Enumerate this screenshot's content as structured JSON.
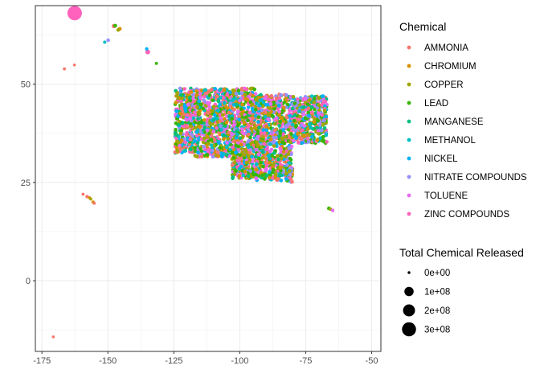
{
  "chart_data": {
    "type": "scatter",
    "title": "",
    "xlabel": "",
    "ylabel": "",
    "xlim": [
      -177.5,
      -46.5
    ],
    "ylim": [
      -18,
      70
    ],
    "xticks": [
      -175,
      -150,
      -125,
      -100,
      -75,
      -50
    ],
    "yticks": [
      0,
      25,
      50
    ],
    "grid": true,
    "legend_placement": "right",
    "color_legend": {
      "title": "Chemical",
      "entries": [
        {
          "name": "AMMONIA",
          "color": "#F8766D"
        },
        {
          "name": "CHROMIUM",
          "color": "#D89000"
        },
        {
          "name": "COPPER",
          "color": "#A3A500"
        },
        {
          "name": "LEAD",
          "color": "#39B600"
        },
        {
          "name": "MANGANESE",
          "color": "#00BF7D"
        },
        {
          "name": "METHANOL",
          "color": "#00BFC4"
        },
        {
          "name": "NICKEL",
          "color": "#00B0F6"
        },
        {
          "name": "NITRATE COMPOUNDS",
          "color": "#9590FF"
        },
        {
          "name": "TOLUENE",
          "color": "#E76BF3"
        },
        {
          "name": "ZINC COMPOUNDS",
          "color": "#FF62BC"
        }
      ]
    },
    "size_legend": {
      "title": "Total Chemical Released",
      "entries": [
        {
          "label": "0e+00",
          "value": 0
        },
        {
          "label": "1e+08",
          "value": 100000000
        },
        {
          "label": "2e+08",
          "value": 200000000
        },
        {
          "label": "3e+08",
          "value": 300000000
        }
      ]
    },
    "points": [
      {
        "x": -162.6,
        "y": 68.1,
        "chemical": "ZINC COMPOUNDS",
        "released": 310000000
      },
      {
        "x": -147.7,
        "y": 64.8,
        "chemical": "AMMONIA",
        "released": 8000000
      },
      {
        "x": -147.2,
        "y": 64.9,
        "chemical": "LEAD",
        "released": 4000000
      },
      {
        "x": -145.5,
        "y": 64.1,
        "chemical": "CHROMIUM",
        "released": 4000000
      },
      {
        "x": -146.1,
        "y": 63.8,
        "chemical": "COPPER",
        "released": 3000000
      },
      {
        "x": -149.9,
        "y": 61.2,
        "chemical": "NITRATE COMPOUNDS",
        "released": 3000000
      },
      {
        "x": -151.2,
        "y": 60.7,
        "chemical": "METHANOL",
        "released": 2000000
      },
      {
        "x": -134.9,
        "y": 58.2,
        "chemical": "ZINC COMPOUNDS",
        "released": 12000000
      },
      {
        "x": -135.3,
        "y": 59.0,
        "chemical": "NICKEL",
        "released": 2000000
      },
      {
        "x": -131.6,
        "y": 55.3,
        "chemical": "LEAD",
        "released": 1000000
      },
      {
        "x": -166.5,
        "y": 53.9,
        "chemical": "AMMONIA",
        "released": 1000000
      },
      {
        "x": -162.7,
        "y": 54.9,
        "chemical": "AMMONIA",
        "released": 500000
      },
      {
        "x": -159.4,
        "y": 22.0,
        "chemical": "AMMONIA",
        "released": 1000000
      },
      {
        "x": -157.9,
        "y": 21.4,
        "chemical": "AMMONIA",
        "released": 2000000
      },
      {
        "x": -157.0,
        "y": 21.1,
        "chemical": "CHROMIUM",
        "released": 1000000
      },
      {
        "x": -156.5,
        "y": 20.8,
        "chemical": "COPPER",
        "released": 1000000
      },
      {
        "x": -155.6,
        "y": 20.0,
        "chemical": "CHROMIUM",
        "released": 1500000
      },
      {
        "x": -155.2,
        "y": 19.7,
        "chemical": "AMMONIA",
        "released": 800000
      },
      {
        "x": -66.2,
        "y": 18.4,
        "chemical": "LEAD",
        "released": 4000000
      },
      {
        "x": -65.6,
        "y": 18.2,
        "chemical": "COPPER",
        "released": 2000000
      },
      {
        "x": -64.8,
        "y": 17.9,
        "chemical": "TOLUENE",
        "released": 3000000
      },
      {
        "x": -170.7,
        "y": -14.3,
        "chemical": "AMMONIA",
        "released": 500000
      }
    ],
    "dense_clusters": [
      {
        "x_min": -124.5,
        "x_max": -117,
        "y_min": 32.5,
        "y_max": 49.0
      },
      {
        "x_min": -117,
        "x_max": -103,
        "y_min": 31.5,
        "y_max": 49.0
      },
      {
        "x_min": -103,
        "x_max": -94,
        "y_min": 26.0,
        "y_max": 49.0
      },
      {
        "x_min": -94,
        "x_max": -80,
        "y_min": 25.5,
        "y_max": 47.5
      },
      {
        "x_min": -80,
        "x_max": -67,
        "y_min": 35.0,
        "y_max": 47.0
      },
      {
        "x_min": -82.5,
        "x_max": -80,
        "y_min": 25.0,
        "y_max": 30.0
      }
    ]
  }
}
